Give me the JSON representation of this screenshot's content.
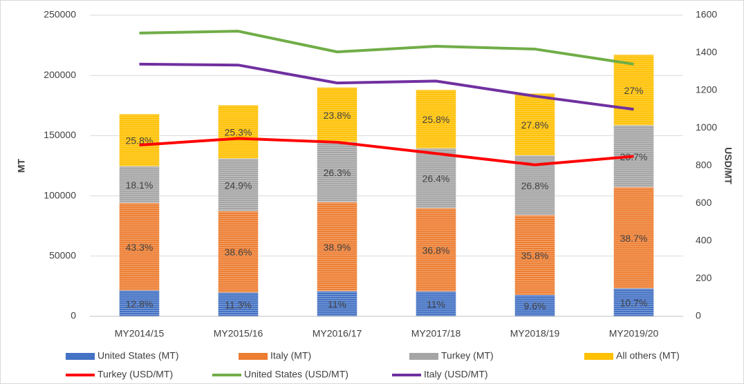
{
  "chart_data": {
    "type": "bar",
    "stacked": true,
    "y_axis_label": "MT",
    "y2_axis_label": "USD/MT",
    "categories": [
      "MY2014/15",
      "MY2015/16",
      "MY2016/17",
      "MY2017/18",
      "MY2018/19",
      "MY2019/20"
    ],
    "ylim": [
      0,
      250000
    ],
    "yticks": [
      0,
      50000,
      100000,
      150000,
      200000,
      250000
    ],
    "y2lim": [
      0,
      1600
    ],
    "y2ticks": [
      0,
      200,
      400,
      600,
      800,
      1000,
      1200,
      1400,
      1600
    ],
    "grid": true,
    "legend": "bottom",
    "series": [
      {
        "name": "United States (MT)",
        "type": "bar",
        "color": "#4472c4",
        "values": [
          21500,
          19800,
          20900,
          20700,
          17800,
          23200
        ],
        "data_labels": [
          "12.8%",
          "11.3%",
          "11%",
          "11%",
          "9.6%",
          "10.7%"
        ]
      },
      {
        "name": "Italy (MT)",
        "type": "bar",
        "color": "#ed7d31",
        "values": [
          72700,
          67600,
          73900,
          69200,
          66200,
          84000
        ],
        "data_labels": [
          "43.3%",
          "38.6%",
          "38.9%",
          "36.8%",
          "35.8%",
          "38.7%"
        ]
      },
      {
        "name": "Turkey (MT)",
        "type": "bar",
        "color": "#a5a5a5",
        "values": [
          30400,
          43600,
          50000,
          49600,
          49600,
          51400
        ],
        "data_labels": [
          "18.1%",
          "24.9%",
          "26.3%",
          "26.4%",
          "26.8%",
          "23.7%"
        ]
      },
      {
        "name": "All others (MT)",
        "type": "bar",
        "color": "#ffc000",
        "values": [
          43300,
          44300,
          45200,
          48500,
          51400,
          58600
        ],
        "data_labels": [
          "25.8%",
          "25.3%",
          "23.8%",
          "25.8%",
          "27.8%",
          "27%"
        ]
      },
      {
        "name": "Turkey (USD/MT)",
        "type": "line",
        "axis": "y2",
        "color": "#ff0000",
        "values": [
          910,
          945,
          925,
          865,
          805,
          850
        ]
      },
      {
        "name": "United States (USD/MT)",
        "type": "line",
        "axis": "y2",
        "color": "#70ad47",
        "values": [
          1505,
          1515,
          1405,
          1435,
          1420,
          1340
        ]
      },
      {
        "name": "Italy (USD/MT)",
        "type": "line",
        "axis": "y2",
        "color": "#7030a0",
        "values": [
          1340,
          1335,
          1240,
          1250,
          1170,
          1100
        ]
      }
    ]
  }
}
